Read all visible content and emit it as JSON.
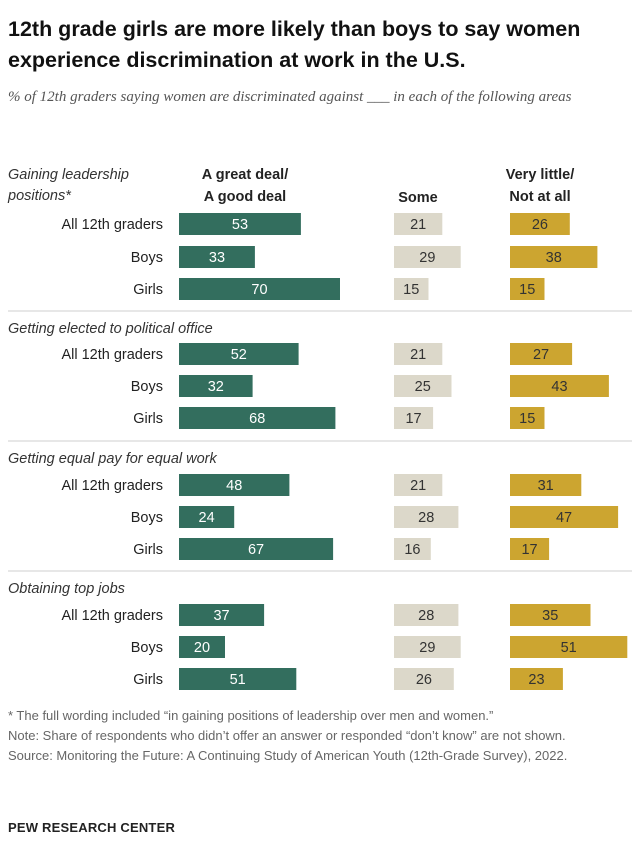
{
  "title": "12th grade girls are more likely than boys to say women experience discrimination at work in the U.S.",
  "subtitle": "% of 12th graders saying women are discriminated against ___ in each of the following areas",
  "notes": [
    "* The full wording included “in gaining positions of leadership over men and women.”",
    "Note: Share of respondents who didn’t offer an answer or responded “don’t know” are not shown.",
    "Source: Monitoring the Future: A Continuing Study of American Youth (12th-Grade Survey), 2022."
  ],
  "brand": "PEW RESEARCH CENTER",
  "colors": {
    "great": "#336e5e",
    "some": "#dcd8ca",
    "little": "#cca530",
    "text_light": "#ffffff",
    "text_dark": "#333333",
    "rule": "#cfcfcf"
  },
  "chart_data": {
    "type": "bar",
    "orientation": "horizontal",
    "series_headers": [
      [
        "A great deal/",
        "A good deal"
      ],
      [
        "Some"
      ],
      [
        "Very little/",
        "Not at all"
      ]
    ],
    "row_labels": [
      "All 12th graders",
      "Boys",
      "Girls"
    ],
    "groups": [
      {
        "label": [
          "Gaining leadership",
          "positions*"
        ],
        "rows": [
          [
            53,
            21,
            26
          ],
          [
            33,
            29,
            38
          ],
          [
            70,
            15,
            15
          ]
        ]
      },
      {
        "label": [
          "Getting elected to political office"
        ],
        "rows": [
          [
            52,
            21,
            27
          ],
          [
            32,
            25,
            43
          ],
          [
            68,
            17,
            15
          ]
        ]
      },
      {
        "label": [
          "Getting equal pay for equal work"
        ],
        "rows": [
          [
            48,
            21,
            31
          ],
          [
            24,
            28,
            47
          ],
          [
            67,
            16,
            17
          ]
        ]
      },
      {
        "label": [
          "Obtaining top jobs"
        ],
        "rows": [
          [
            37,
            28,
            35
          ],
          [
            20,
            29,
            51
          ],
          [
            51,
            26,
            23
          ]
        ]
      }
    ]
  }
}
